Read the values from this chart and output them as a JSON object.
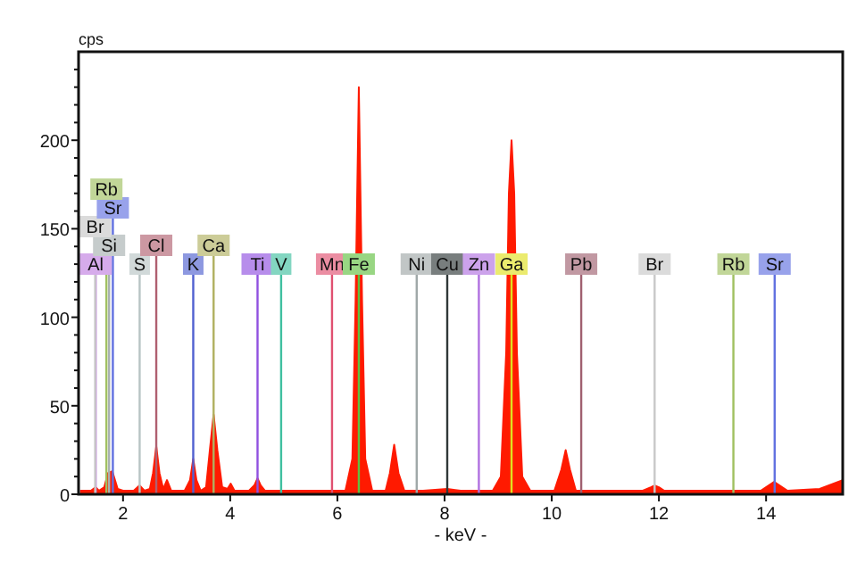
{
  "chart_data": {
    "type": "area",
    "xlabel": "- keV -",
    "ylabel": "cps",
    "xlim": [
      1.17,
      15.43
    ],
    "ylim": [
      0,
      250
    ],
    "xticks": [
      2,
      4,
      6,
      8,
      10,
      12,
      14
    ],
    "yticks": [
      0,
      {
        "value": 10,
        "label": null
      },
      {
        "value": 20,
        "label": null
      },
      {
        "value": 30,
        "label": null
      },
      {
        "value": 40,
        "label": null
      },
      50,
      {
        "value": 60,
        "label": null
      },
      {
        "value": 70,
        "label": null
      },
      {
        "value": 80,
        "label": null
      },
      {
        "value": 90,
        "label": null
      },
      100,
      {
        "value": 110,
        "label": null
      },
      {
        "value": 120,
        "label": null
      },
      {
        "value": 130,
        "label": null
      },
      {
        "value": 140,
        "label": null
      },
      150,
      {
        "value": 160,
        "label": null
      },
      {
        "value": 170,
        "label": null
      },
      {
        "value": 180,
        "label": null
      },
      {
        "value": 190,
        "label": null
      },
      200,
      {
        "value": 210,
        "label": null
      },
      {
        "value": 220,
        "label": null
      },
      {
        "value": 230,
        "label": null
      },
      {
        "value": 240,
        "label": null
      }
    ],
    "grid": false,
    "series": [
      {
        "color": "#ff1a00",
        "x": [
          1.2,
          1.4,
          1.49,
          1.55,
          1.65,
          1.72,
          1.8,
          1.9,
          2.0,
          2.2,
          2.31,
          2.4,
          2.5,
          2.56,
          2.62,
          2.68,
          2.75,
          2.82,
          2.9,
          3.15,
          3.25,
          3.31,
          3.37,
          3.45,
          3.55,
          3.62,
          3.69,
          3.76,
          3.85,
          3.95,
          4.01,
          4.08,
          4.35,
          4.45,
          4.51,
          4.57,
          4.65,
          5.5,
          5.9,
          6.15,
          6.28,
          6.34,
          6.4,
          6.46,
          6.52,
          6.65,
          6.9,
          6.98,
          7.06,
          7.14,
          7.25,
          7.6,
          8.05,
          8.3,
          8.9,
          9.05,
          9.15,
          9.2,
          9.25,
          9.3,
          9.35,
          9.45,
          9.6,
          10.05,
          10.18,
          10.26,
          10.34,
          10.45,
          11.7,
          11.85,
          11.92,
          12.0,
          12.1,
          13.9,
          14.05,
          14.15,
          14.25,
          14.4,
          15.0,
          15.43
        ],
        "values": [
          2,
          2,
          4,
          2,
          4,
          12,
          13,
          3,
          2,
          2,
          5,
          2,
          3,
          12,
          27,
          12,
          3,
          8,
          2,
          2,
          8,
          20,
          8,
          2,
          4,
          25,
          45,
          25,
          4,
          3,
          6,
          2,
          2,
          5,
          9,
          5,
          2,
          2,
          2,
          2,
          20,
          110,
          230,
          110,
          20,
          2,
          2,
          12,
          28,
          12,
          2,
          2,
          3,
          2,
          2,
          10,
          80,
          170,
          200,
          170,
          80,
          10,
          2,
          2,
          14,
          25,
          14,
          2,
          2,
          4,
          5,
          4,
          2,
          2,
          5,
          7,
          5,
          2,
          3,
          8
        ]
      }
    ],
    "ref_lines": [
      {
        "axis": "x",
        "value": 1.49,
        "label": "Al",
        "color": "#c07ee0"
      },
      {
        "axis": "x",
        "value": 1.74,
        "label": "Si",
        "color": "#a8b0b0"
      },
      {
        "axis": "x",
        "value": 1.48,
        "label": "Br",
        "color": "#c8c8c8"
      },
      {
        "axis": "x",
        "value": 1.81,
        "label": "Sr",
        "color": "#6070e0"
      },
      {
        "axis": "x",
        "value": 1.69,
        "label": "Rb",
        "color": "#a0c060"
      },
      {
        "axis": "x",
        "value": 2.31,
        "label": "S",
        "color": "#b8c4c4"
      },
      {
        "axis": "x",
        "value": 2.62,
        "label": "Cl",
        "color": "#b06070"
      },
      {
        "axis": "x",
        "value": 3.31,
        "label": "K",
        "color": "#5060d0"
      },
      {
        "axis": "x",
        "value": 3.69,
        "label": "Ca",
        "color": "#b0b060"
      },
      {
        "axis": "x",
        "value": 4.51,
        "label": "Ti",
        "color": "#9050e0"
      },
      {
        "axis": "x",
        "value": 4.95,
        "label": "V",
        "color": "#40c0a0"
      },
      {
        "axis": "x",
        "value": 5.9,
        "label": "Mn",
        "color": "#e05070"
      },
      {
        "axis": "x",
        "value": 6.4,
        "label": "Fe",
        "color": "#60c040"
      },
      {
        "axis": "x",
        "value": 7.48,
        "label": "Ni",
        "color": "#a0a8a8"
      },
      {
        "axis": "x",
        "value": 8.05,
        "label": "Cu",
        "color": "#303838"
      },
      {
        "axis": "x",
        "value": 8.64,
        "label": "Zn",
        "color": "#b070e0"
      },
      {
        "axis": "x",
        "value": 9.25,
        "label": "Ga",
        "color": "#e0e020"
      },
      {
        "axis": "x",
        "value": 10.55,
        "label": "Pb",
        "color": "#a06070"
      },
      {
        "axis": "x",
        "value": 11.92,
        "label": "Br",
        "color": "#c8c8c8"
      },
      {
        "axis": "x",
        "value": 13.39,
        "label": "Rb",
        "color": "#a0c060"
      },
      {
        "axis": "x",
        "value": 14.16,
        "label": "Sr",
        "color": "#6070e0"
      }
    ]
  }
}
